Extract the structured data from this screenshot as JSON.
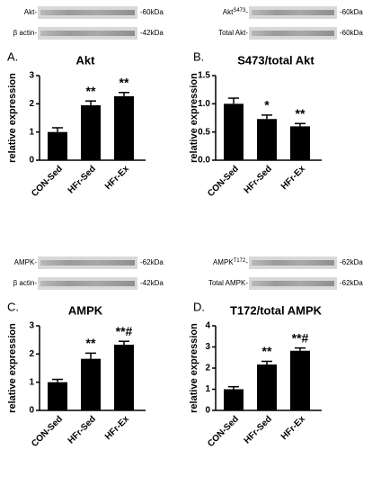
{
  "chart_data": [
    {
      "type": "bar",
      "panel": "A.",
      "title": "Akt",
      "ylabel": "relative expression",
      "categories": [
        "CON-Sed",
        "HFr-Sed",
        "HFr-Ex"
      ],
      "values": [
        1.0,
        1.95,
        2.27
      ],
      "errors": [
        0.15,
        0.15,
        0.13
      ],
      "annotations": [
        null,
        "**",
        "**"
      ],
      "color": "#000000",
      "ylim": [
        0,
        3
      ],
      "yticks": [
        0,
        1,
        2,
        3
      ],
      "blot": [
        {
          "label": "Akt-",
          "kda": "-60kDa"
        },
        {
          "label": "β actin-",
          "kda": "-42kDa"
        }
      ]
    },
    {
      "type": "bar",
      "panel": "B.",
      "title": "S473/total Akt",
      "ylabel": "relative expression",
      "categories": [
        "CON-Sed",
        "HFr-Sed",
        "HFr-Ex"
      ],
      "values": [
        1.0,
        0.73,
        0.6
      ],
      "errors": [
        0.1,
        0.07,
        0.05
      ],
      "annotations": [
        null,
        "*",
        "**"
      ],
      "color": "#000000",
      "ylim": [
        0,
        1.5
      ],
      "yticks": [
        {
          "value": 0,
          "label": "0.0"
        },
        0.5,
        {
          "value": 1,
          "label": "1.0"
        },
        1.5
      ],
      "blot": [
        {
          "label": "Akt",
          "sup": "S473",
          "tail": "-",
          "kda": "-60kDa"
        },
        {
          "label": "Total Akt-",
          "kda": "-60kDa"
        }
      ]
    },
    {
      "type": "bar",
      "panel": "C.",
      "title": "AMPK",
      "ylabel": "relative expression",
      "categories": [
        "CON-Sed",
        "HFr-Sed",
        "HFr-Ex"
      ],
      "values": [
        1.0,
        1.83,
        2.33
      ],
      "errors": [
        0.1,
        0.2,
        0.12
      ],
      "annotations": [
        null,
        "**",
        "**#"
      ],
      "color": "#000000",
      "ylim": [
        0,
        3
      ],
      "yticks": [
        0,
        1,
        2,
        3
      ],
      "blot": [
        {
          "label": "AMPK-",
          "kda": "-62kDa"
        },
        {
          "label": "β actin-",
          "kda": "-42kDa"
        }
      ]
    },
    {
      "type": "bar",
      "panel": "D.",
      "title": "T172/total AMPK",
      "ylabel": "relative expression",
      "categories": [
        "CON-Sed",
        "HFr-Sed",
        "HFr-Ex"
      ],
      "values": [
        1.0,
        2.17,
        2.82
      ],
      "errors": [
        0.12,
        0.15,
        0.13
      ],
      "annotations": [
        null,
        "**",
        "**#"
      ],
      "color": "#000000",
      "ylim": [
        0,
        4
      ],
      "yticks": [
        0,
        1,
        2,
        3,
        4
      ],
      "blot": [
        {
          "label": "AMPK",
          "sup": "T172",
          "tail": "-",
          "kda": "-62kDa"
        },
        {
          "label": "Total AMPK-",
          "kda": "-62kDa"
        }
      ]
    }
  ]
}
